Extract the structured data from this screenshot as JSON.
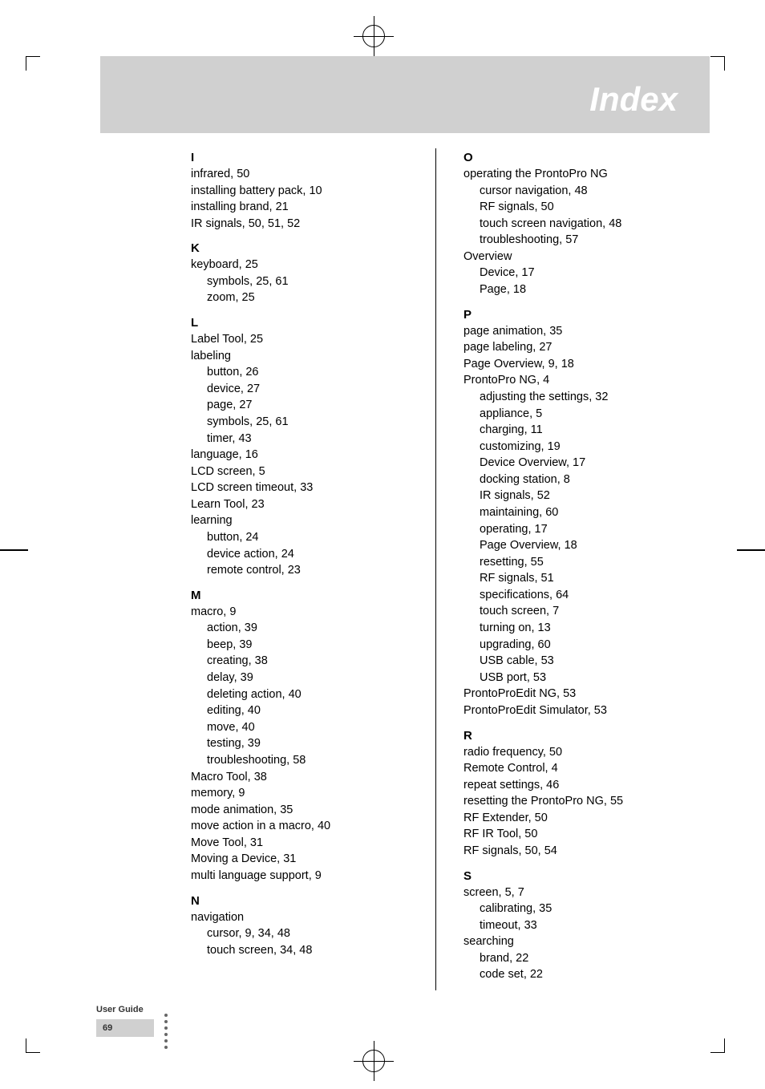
{
  "header_title": "Index",
  "footer": {
    "label": "User Guide",
    "page_num": "69"
  },
  "col1": {
    "I": {
      "letter": "I",
      "entries": [
        {
          "t": "infrared, 50"
        },
        {
          "t": "installing battery pack, 10"
        },
        {
          "t": "installing brand, 21"
        },
        {
          "t": "IR signals, 50, 51, 52"
        }
      ]
    },
    "K": {
      "letter": "K",
      "entries": [
        {
          "t": "keyboard, 25"
        },
        {
          "t": "symbols, 25, 61",
          "s": true
        },
        {
          "t": "zoom, 25",
          "s": true
        }
      ]
    },
    "L": {
      "letter": "L",
      "entries": [
        {
          "t": "Label Tool, 25"
        },
        {
          "t": "labeling"
        },
        {
          "t": "button, 26",
          "s": true
        },
        {
          "t": "device, 27",
          "s": true
        },
        {
          "t": "page, 27",
          "s": true
        },
        {
          "t": "symbols, 25, 61",
          "s": true
        },
        {
          "t": "timer, 43",
          "s": true
        },
        {
          "t": "language, 16"
        },
        {
          "t": "LCD screen, 5"
        },
        {
          "t": "LCD screen timeout, 33"
        },
        {
          "t": "Learn Tool, 23"
        },
        {
          "t": "learning"
        },
        {
          "t": "button, 24",
          "s": true
        },
        {
          "t": "device action, 24",
          "s": true
        },
        {
          "t": "remote control, 23",
          "s": true
        }
      ]
    },
    "M": {
      "letter": "M",
      "entries": [
        {
          "t": "macro, 9"
        },
        {
          "t": "action, 39",
          "s": true
        },
        {
          "t": "beep, 39",
          "s": true
        },
        {
          "t": "creating, 38",
          "s": true
        },
        {
          "t": "delay, 39",
          "s": true
        },
        {
          "t": "deleting action, 40",
          "s": true
        },
        {
          "t": "editing, 40",
          "s": true
        },
        {
          "t": "move, 40",
          "s": true
        },
        {
          "t": "testing, 39",
          "s": true
        },
        {
          "t": "troubleshooting, 58",
          "s": true
        },
        {
          "t": "Macro Tool, 38"
        },
        {
          "t": "memory, 9"
        },
        {
          "t": "mode animation, 35"
        },
        {
          "t": "move action in a macro, 40"
        },
        {
          "t": "Move Tool, 31"
        },
        {
          "t": "Moving a Device, 31"
        },
        {
          "t": "multi language support, 9"
        }
      ]
    },
    "N": {
      "letter": "N",
      "entries": [
        {
          "t": "navigation"
        },
        {
          "t": "cursor, 9, 34, 48",
          "s": true
        },
        {
          "t": "touch screen, 34, 48",
          "s": true
        }
      ]
    }
  },
  "col2": {
    "O": {
      "letter": "O",
      "entries": [
        {
          "t": "operating the ProntoPro NG"
        },
        {
          "t": "cursor navigation, 48",
          "s": true
        },
        {
          "t": "RF signals, 50",
          "s": true
        },
        {
          "t": "touch screen navigation, 48",
          "s": true
        },
        {
          "t": "troubleshooting, 57",
          "s": true
        },
        {
          "t": "Overview"
        },
        {
          "t": "Device, 17",
          "s": true
        },
        {
          "t": "Page, 18",
          "s": true
        }
      ]
    },
    "P": {
      "letter": "P",
      "entries": [
        {
          "t": "page animation, 35"
        },
        {
          "t": "page labeling, 27"
        },
        {
          "t": "Page Overview, 9, 18"
        },
        {
          "t": "ProntoPro NG, 4"
        },
        {
          "t": "adjusting the settings, 32",
          "s": true
        },
        {
          "t": "appliance, 5",
          "s": true
        },
        {
          "t": "charging, 11",
          "s": true
        },
        {
          "t": "customizing, 19",
          "s": true
        },
        {
          "t": "Device Overview, 17",
          "s": true
        },
        {
          "t": "docking station, 8",
          "s": true
        },
        {
          "t": "IR signals, 52",
          "s": true
        },
        {
          "t": "maintaining, 60",
          "s": true
        },
        {
          "t": "operating, 17",
          "s": true
        },
        {
          "t": "Page Overview, 18",
          "s": true
        },
        {
          "t": "resetting, 55",
          "s": true
        },
        {
          "t": "RF signals, 51",
          "s": true
        },
        {
          "t": "specifications, 64",
          "s": true
        },
        {
          "t": "touch screen, 7",
          "s": true
        },
        {
          "t": "turning on, 13",
          "s": true
        },
        {
          "t": "upgrading, 60",
          "s": true
        },
        {
          "t": "USB cable, 53",
          "s": true
        },
        {
          "t": "USB port, 53",
          "s": true
        },
        {
          "t": "ProntoProEdit NG, 53"
        },
        {
          "t": "ProntoProEdit Simulator, 53"
        }
      ]
    },
    "R": {
      "letter": "R",
      "entries": [
        {
          "t": "radio frequency, 50"
        },
        {
          "t": "Remote Control, 4"
        },
        {
          "t": "repeat settings, 46"
        },
        {
          "t": "resetting the ProntoPro NG, 55"
        },
        {
          "t": "RF Extender, 50"
        },
        {
          "t": "RF IR Tool, 50"
        },
        {
          "t": "RF signals, 50, 54"
        }
      ]
    },
    "S": {
      "letter": "S",
      "entries": [
        {
          "t": "screen, 5, 7"
        },
        {
          "t": "calibrating, 35",
          "s": true
        },
        {
          "t": "timeout, 33",
          "s": true
        },
        {
          "t": "searching"
        },
        {
          "t": "brand, 22",
          "s": true
        },
        {
          "t": "code set, 22",
          "s": true
        }
      ]
    }
  }
}
